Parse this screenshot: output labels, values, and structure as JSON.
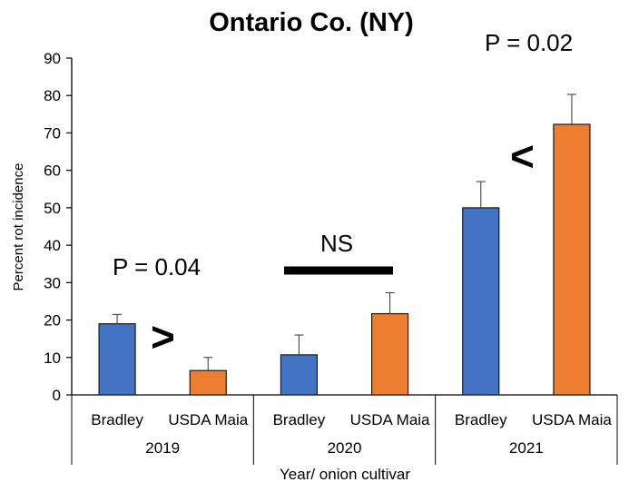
{
  "chart_data": {
    "type": "bar",
    "title": "Ontario Co. (NY)",
    "xlabel": "Year/ onion cultivar",
    "ylabel": "Percent rot incidence",
    "ylim": [
      0,
      90
    ],
    "yticks": [
      "0",
      "10",
      "20",
      "30",
      "40",
      "50",
      "60",
      "70",
      "80",
      "90"
    ],
    "groups": [
      {
        "year": "2019",
        "bars": [
          {
            "cultivar": "Bradley",
            "value": 19,
            "error": 2.5,
            "color": "#4472C4"
          },
          {
            "cultivar": "USDA Maia",
            "value": 6.5,
            "error": 3.5,
            "color": "#ED7D31"
          }
        ]
      },
      {
        "year": "2020",
        "bars": [
          {
            "cultivar": "Bradley",
            "value": 10.7,
            "error": 5.3,
            "color": "#4472C4"
          },
          {
            "cultivar": "USDA Maia",
            "value": 21.7,
            "error": 5.6,
            "color": "#ED7D31"
          }
        ]
      },
      {
        "year": "2021",
        "bars": [
          {
            "cultivar": "Bradley",
            "value": 50,
            "error": 7,
            "color": "#4472C4"
          },
          {
            "cultivar": "USDA Maia",
            "value": 72.3,
            "error": 8,
            "color": "#ED7D31"
          }
        ]
      }
    ],
    "annotations": [
      {
        "text": "P =  0.04",
        "group": 0
      },
      {
        "text": ">",
        "group": 0,
        "kind": "comparison"
      },
      {
        "text": "NS",
        "group": 1
      },
      {
        "text": "P = 0.02",
        "group": 2
      },
      {
        "text": "<",
        "group": 2,
        "kind": "comparison"
      }
    ]
  }
}
